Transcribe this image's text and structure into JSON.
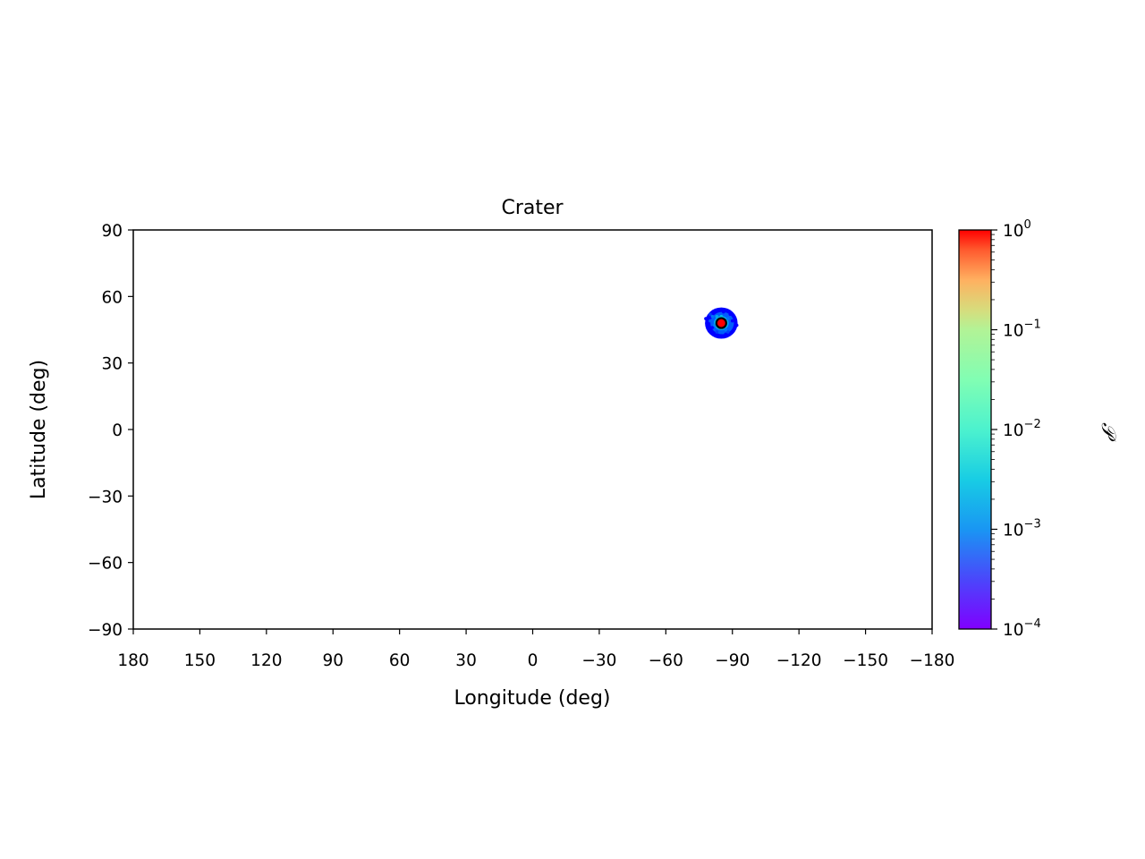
{
  "chart_data": {
    "type": "scatter",
    "title": "Crater",
    "xlabel": "Longitude (deg)",
    "ylabel": "Latitude (deg)",
    "xlim": [
      180,
      -180
    ],
    "ylim": [
      -90,
      90
    ],
    "x_ticks": [
      180,
      150,
      120,
      90,
      60,
      30,
      0,
      -30,
      -60,
      -90,
      -120,
      -150,
      -180
    ],
    "x_tick_labels": [
      "180",
      "150",
      "120",
      "90",
      "60",
      "30",
      "0",
      "−30",
      "−60",
      "−90",
      "−120",
      "−150",
      "−180"
    ],
    "y_ticks": [
      90,
      60,
      30,
      0,
      -30,
      -60,
      -90
    ],
    "y_tick_labels": [
      "90",
      "60",
      "30",
      "0",
      "−30",
      "−60",
      "−90"
    ],
    "grid": false,
    "colorbar": {
      "label": "𝒫",
      "scale": "log",
      "range": [
        0.0001,
        1
      ],
      "colormap": "rainbow",
      "tick_values": [
        1,
        0.1,
        0.01,
        0.001,
        0.0001
      ],
      "ticks": [
        {
          "base": "10",
          "exp": "0"
        },
        {
          "base": "10",
          "exp": "−1"
        },
        {
          "base": "10",
          "exp": "−2"
        },
        {
          "base": "10",
          "exp": "−3"
        },
        {
          "base": "10",
          "exp": "−4"
        }
      ]
    },
    "series": [
      {
        "cluster": {
          "center_lon": -85,
          "center_lat": 48,
          "lon_spread": 7,
          "lat_spread": 6
        },
        "points": [
          {
            "lon": -78,
            "lat": 50,
            "p": 0.0001
          },
          {
            "lon": -79,
            "lat": 48,
            "p": 0.0001
          },
          {
            "lon": -80,
            "lat": 52,
            "p": 0.0002
          },
          {
            "lon": -81,
            "lat": 46,
            "p": 0.0001
          },
          {
            "lon": -82,
            "lat": 53,
            "p": 0.0001
          },
          {
            "lon": -83,
            "lat": 44,
            "p": 0.0002
          },
          {
            "lon": -84,
            "lat": 54,
            "p": 0.0001
          },
          {
            "lon": -86,
            "lat": 53,
            "p": 0.0001
          },
          {
            "lon": -87,
            "lat": 43,
            "p": 0.0001
          },
          {
            "lon": -88,
            "lat": 44,
            "p": 0.0002
          },
          {
            "lon": -89,
            "lat": 52,
            "p": 0.0001
          },
          {
            "lon": -90,
            "lat": 49,
            "p": 0.0001
          },
          {
            "lon": -91,
            "lat": 46,
            "p": 0.0001
          },
          {
            "lon": -92,
            "lat": 47,
            "p": 0.0001
          },
          {
            "lon": -80,
            "lat": 49,
            "p": 0.0003
          },
          {
            "lon": -81,
            "lat": 51,
            "p": 0.0004
          },
          {
            "lon": -82,
            "lat": 47,
            "p": 0.0005
          },
          {
            "lon": -88,
            "lat": 50,
            "p": 0.0004
          },
          {
            "lon": -89,
            "lat": 47,
            "p": 0.0003
          },
          {
            "lon": -87,
            "lat": 45,
            "p": 0.0004
          },
          {
            "lon": -83,
            "lat": 51,
            "p": 0.0008
          },
          {
            "lon": -84,
            "lat": 50,
            "p": 0.001
          },
          {
            "lon": -86,
            "lat": 50,
            "p": 0.001
          },
          {
            "lon": -87,
            "lat": 48,
            "p": 0.0009
          },
          {
            "lon": -83,
            "lat": 47,
            "p": 0.0008
          },
          {
            "lon": -84,
            "lat": 46,
            "p": 0.0009
          },
          {
            "lon": -86,
            "lat": 46,
            "p": 0.0008
          },
          {
            "lon": -85,
            "lat": 51,
            "p": 0.0012
          },
          {
            "lon": -85,
            "lat": 48,
            "p": 1.0
          }
        ]
      }
    ]
  }
}
